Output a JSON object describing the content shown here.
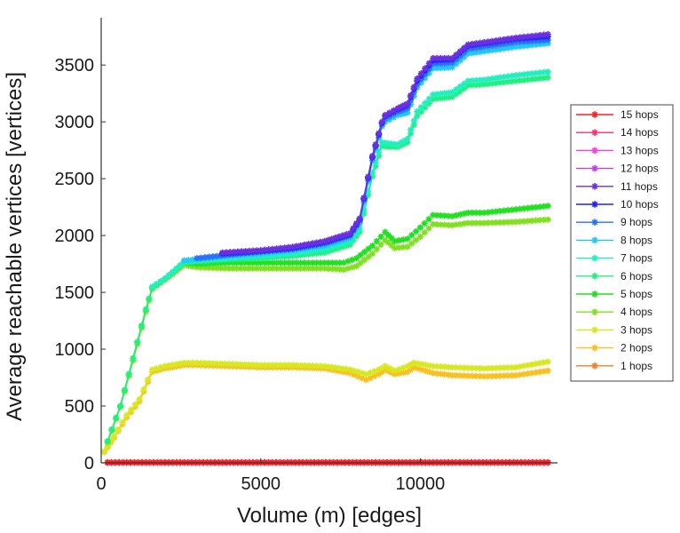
{
  "chart_data": {
    "type": "line",
    "xlabel": "Volume (m) [edges]",
    "ylabel": "Average reachable vertices [vertices]",
    "xlim": [
      0,
      14300
    ],
    "ylim": [
      0,
      3900
    ],
    "xticks": [
      0,
      5000,
      10000
    ],
    "yticks": [
      0,
      500,
      1000,
      1500,
      2000,
      2500,
      3000,
      3500
    ],
    "grid": false,
    "legend_position": "right",
    "marker": "asterisk",
    "series": [
      {
        "name": "15 hops",
        "color": "#ff2020",
        "x": [
          200,
          14000
        ],
        "y": [
          2,
          2
        ]
      },
      {
        "name": "14 hops",
        "color": "#ff2e78",
        "x": [
          200,
          14000
        ],
        "y": [
          2,
          2
        ]
      },
      {
        "name": "13 hops",
        "color": "#ff3ce0",
        "x": [
          200,
          14000
        ],
        "y": [
          2,
          2
        ]
      },
      {
        "name": "12 hops",
        "color": "#c040f0",
        "x": [
          200,
          14000
        ],
        "y": [
          2,
          2
        ]
      },
      {
        "name": "11 hops",
        "color": "#6a30e0",
        "x": [
          3800,
          5000,
          6000,
          7000,
          7800,
          8100,
          8500,
          8800,
          8900,
          9300,
          9600,
          9900,
          10400,
          11000,
          11500,
          12000,
          13000,
          14000
        ],
        "y": [
          1850,
          1870,
          1900,
          1950,
          2020,
          2150,
          2700,
          3000,
          3060,
          3120,
          3160,
          3380,
          3560,
          3560,
          3680,
          3700,
          3740,
          3770
        ]
      },
      {
        "name": "10 hops",
        "color": "#2020ff",
        "x": [
          3800,
          5000,
          6000,
          7000,
          7800,
          8100,
          8500,
          8800,
          8900,
          9300,
          9600,
          9900,
          10400,
          11000,
          11500,
          12000,
          13000,
          14000
        ],
        "y": [
          1840,
          1860,
          1890,
          1940,
          2010,
          2140,
          2690,
          2990,
          3050,
          3110,
          3150,
          3360,
          3540,
          3550,
          3670,
          3690,
          3730,
          3750
        ]
      },
      {
        "name": "9 hops",
        "color": "#2a70ff",
        "x": [
          3000,
          4000,
          5000,
          6000,
          7000,
          7800,
          8100,
          8500,
          8800,
          8900,
          9300,
          9600,
          9900,
          10400,
          11000,
          11500,
          12000,
          13000,
          14000
        ],
        "y": [
          1800,
          1830,
          1860,
          1880,
          1930,
          2000,
          2130,
          2680,
          2980,
          3030,
          3090,
          3120,
          3330,
          3510,
          3520,
          3640,
          3660,
          3700,
          3720
        ]
      },
      {
        "name": "8 hops",
        "color": "#20c8f8",
        "x": [
          2600,
          3000,
          4000,
          5000,
          6000,
          7000,
          7800,
          8100,
          8500,
          8800,
          8900,
          9300,
          9600,
          9900,
          10400,
          11000,
          11500,
          12000,
          13000,
          14000
        ],
        "y": [
          1780,
          1790,
          1820,
          1840,
          1870,
          1910,
          1980,
          2110,
          2660,
          2960,
          3000,
          3060,
          3080,
          3300,
          3470,
          3480,
          3600,
          3620,
          3660,
          3690
        ]
      },
      {
        "name": "7 hops",
        "color": "#20f0c0",
        "x": [
          1600,
          2000,
          2600,
          3000,
          4000,
          5000,
          6000,
          7000,
          7800,
          8100,
          8500,
          8800,
          9000,
          9300,
          9600,
          9900,
          10400,
          11000,
          11500,
          12000,
          13000,
          14000
        ],
        "y": [
          1550,
          1620,
          1770,
          1780,
          1800,
          1820,
          1840,
          1880,
          1950,
          2060,
          2550,
          2820,
          2810,
          2800,
          2850,
          3090,
          3240,
          3260,
          3360,
          3370,
          3410,
          3440
        ]
      },
      {
        "name": "6 hops",
        "color": "#20f080",
        "x": [
          200,
          600,
          1000,
          1400,
          1600,
          2000,
          2600,
          3000,
          4000,
          5000,
          6000,
          7000,
          7800,
          8100,
          8500,
          8800,
          9000,
          9300,
          9600,
          9900,
          10400,
          11000,
          11500,
          12000,
          13000,
          14000
        ],
        "y": [
          190,
          500,
          920,
          1350,
          1540,
          1620,
          1760,
          1770,
          1790,
          1800,
          1820,
          1850,
          1920,
          2030,
          2520,
          2790,
          2780,
          2780,
          2820,
          3050,
          3200,
          3220,
          3320,
          3330,
          3360,
          3390
        ]
      },
      {
        "name": "5 hops",
        "color": "#20e020",
        "x": [
          200,
          600,
          1000,
          1400,
          1600,
          2000,
          2600,
          3000,
          4000,
          5000,
          6000,
          7000,
          7600,
          8000,
          8500,
          8900,
          9200,
          9600,
          10000,
          10400,
          11000,
          11500,
          12000,
          13000,
          14000
        ],
        "y": [
          190,
          500,
          920,
          1350,
          1540,
          1620,
          1760,
          1750,
          1760,
          1760,
          1760,
          1760,
          1760,
          1800,
          1910,
          2030,
          1950,
          1970,
          2070,
          2180,
          2170,
          2200,
          2200,
          2230,
          2260
        ]
      },
      {
        "name": "4 hops",
        "color": "#80e020",
        "x": [
          200,
          600,
          1000,
          1400,
          1600,
          2000,
          2600,
          3000,
          4000,
          5000,
          6000,
          7000,
          7600,
          8000,
          8500,
          8900,
          9200,
          9600,
          10000,
          10400,
          11000,
          11500,
          12000,
          13000,
          14000
        ],
        "y": [
          180,
          490,
          900,
          1330,
          1530,
          1610,
          1740,
          1720,
          1710,
          1710,
          1710,
          1710,
          1700,
          1730,
          1840,
          1960,
          1890,
          1900,
          1990,
          2100,
          2090,
          2110,
          2110,
          2120,
          2140
        ]
      },
      {
        "name": "3 hops",
        "color": "#d8e820",
        "x": [
          100,
          400,
          800,
          1200,
          1600,
          2000,
          2600,
          3000,
          4000,
          5000,
          6000,
          7000,
          7800,
          8300,
          8700,
          8900,
          9200,
          9600,
          9800,
          10400,
          11000,
          12000,
          13000,
          14000
        ],
        "y": [
          100,
          230,
          420,
          560,
          820,
          850,
          880,
          880,
          870,
          860,
          860,
          850,
          820,
          780,
          820,
          850,
          810,
          850,
          880,
          850,
          840,
          830,
          840,
          890
        ]
      },
      {
        "name": "2 hops",
        "color": "#f8c020",
        "x": [
          100,
          400,
          800,
          1200,
          1600,
          2000,
          2600,
          3000,
          4000,
          5000,
          6000,
          7000,
          7800,
          8300,
          8700,
          8900,
          9200,
          9600,
          9800,
          10400,
          11000,
          12000,
          13000,
          14000
        ],
        "y": [
          95,
          220,
          400,
          540,
          800,
          830,
          860,
          860,
          850,
          840,
          840,
          830,
          790,
          730,
          780,
          820,
          780,
          800,
          840,
          790,
          770,
          760,
          770,
          810
        ]
      },
      {
        "name": "1 hops",
        "color": "#f08020",
        "x": [
          200,
          14000
        ],
        "y": [
          5,
          5
        ]
      }
    ]
  }
}
